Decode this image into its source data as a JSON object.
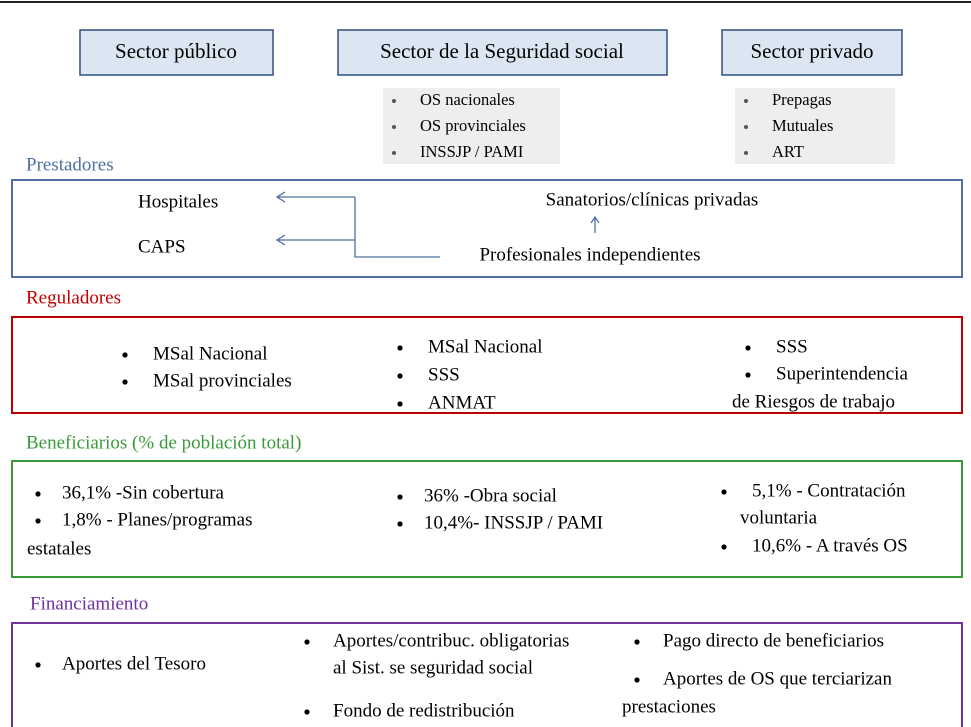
{
  "sectors": [
    "Sector público",
    "Sector de la Seguridad social",
    "Sector privado"
  ],
  "sector_members": {
    "seguridad_social": [
      "OS nacionales",
      "OS provinciales",
      "INSSJP / PAMI"
    ],
    "privado": [
      "Prepagas",
      "Mutuales",
      "ART"
    ]
  },
  "prestadores": {
    "label": "Prestadores",
    "public": [
      "Hospitales",
      "CAPS"
    ],
    "private": "Sanatorios/clínicas privadas",
    "independent": "Profesionales independientes"
  },
  "reguladores": {
    "label": "Reguladores",
    "columns": [
      [
        [
          "MSal Nacional"
        ],
        [
          "MSal provinciales"
        ]
      ],
      [
        [
          "MSal Nacional"
        ],
        [
          "SSS"
        ],
        [
          "ANMAT"
        ]
      ],
      [
        [
          "SSS"
        ],
        [
          "Superintendencia",
          "de Riesgos de trabajo"
        ]
      ]
    ]
  },
  "beneficiarios": {
    "label": "Beneficiarios (% de población total)",
    "columns": [
      [
        [
          "36,1% -Sin cobertura"
        ],
        [
          "1,8% - Planes/programas",
          "estatales"
        ]
      ],
      [
        [
          "36% -Obra social"
        ],
        [
          "10,4%- INSSJP / PAMI"
        ]
      ],
      [
        [
          "5,1% - Contratación",
          "voluntaria"
        ],
        [
          "10,6% - A través OS"
        ]
      ]
    ]
  },
  "financiamiento": {
    "label": "Financiamiento",
    "columns": [
      [
        [
          "Aportes del Tesoro"
        ]
      ],
      [
        [
          "Aportes/contribuc. obligatorias",
          "al Sist. se seguridad social"
        ],
        [
          "Fondo de redistribución"
        ]
      ],
      [
        [
          "Pago directo de beneficiarios"
        ],
        [
          "Aportes de OS que terciarizan",
          "prestaciones"
        ]
      ]
    ]
  }
}
